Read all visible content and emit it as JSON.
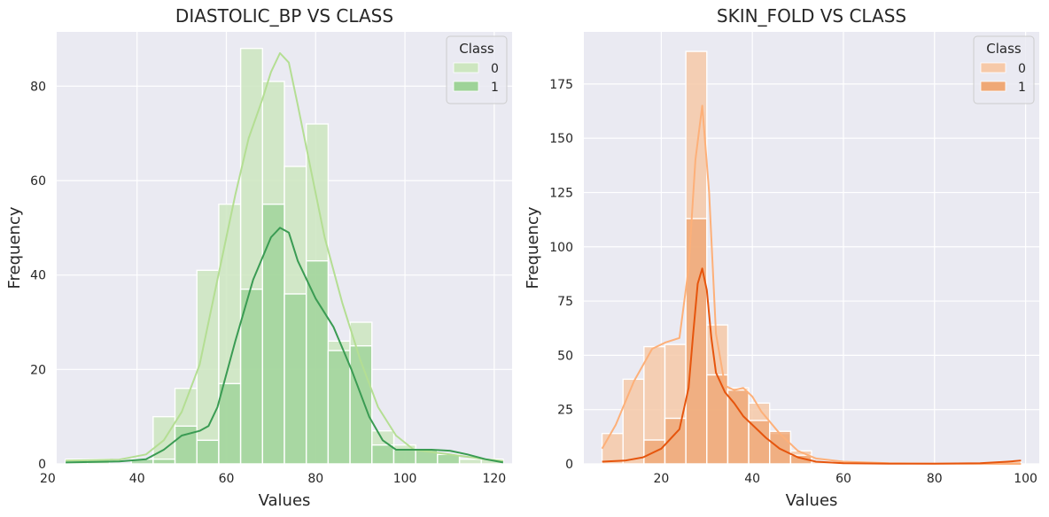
{
  "chart_data": [
    {
      "type": "histogram",
      "title": "DIASTOLIC_BP VS CLASS",
      "xlabel": "Values",
      "ylabel": "Frequency",
      "xlim": [
        22,
        124
      ],
      "ylim": [
        0,
        91.5
      ],
      "xticks": [
        20,
        40,
        60,
        80,
        100,
        120
      ],
      "yticks": [
        0,
        20,
        40,
        60,
        80
      ],
      "grid": true,
      "legend_title": "Class",
      "legend_position": "top-right",
      "bins": {
        "edges": [
          24.0,
          28.9,
          33.8,
          38.7,
          43.6,
          48.5,
          53.4,
          58.3,
          63.2,
          68.1,
          73.0,
          77.9,
          82.8,
          87.7,
          92.6,
          97.5,
          102.4,
          107.3,
          112.2,
          117.1,
          122.0
        ]
      },
      "series": [
        {
          "name": "0",
          "color": "#b4de93",
          "fill": "#cde6c0",
          "counts": [
            1,
            1,
            0,
            0,
            10,
            16,
            41,
            55,
            88,
            81,
            63,
            72,
            26,
            30,
            7,
            4,
            3,
            2,
            1,
            1
          ],
          "kde_x": [
            24,
            30,
            36,
            42,
            46,
            50,
            54,
            58,
            62,
            65,
            68,
            70,
            72,
            74,
            76,
            79,
            82,
            86,
            90,
            94,
            98,
            102,
            106,
            110,
            114,
            118,
            122
          ],
          "kde_y": [
            0.7,
            0.8,
            0.9,
            2,
            5,
            11,
            21,
            39,
            57,
            69,
            77,
            83,
            87,
            85,
            76,
            62,
            48,
            34,
            22,
            12,
            6,
            3,
            2.5,
            2,
            1.5,
            1,
            0.6
          ]
        },
        {
          "name": "1",
          "color": "#3a9b53",
          "fill": "#9ed398",
          "counts": [
            0,
            0,
            0,
            1,
            1,
            8,
            5,
            17,
            37,
            55,
            36,
            43,
            24,
            25,
            4,
            3,
            3,
            2,
            0,
            0
          ],
          "kde_x": [
            24,
            36,
            42,
            46,
            50,
            54,
            56,
            58,
            62,
            66,
            70,
            72,
            74,
            76,
            80,
            84,
            88,
            92,
            95,
            98,
            102,
            106,
            110,
            114,
            118,
            122
          ],
          "kde_y": [
            0.3,
            0.5,
            1,
            3,
            6,
            7,
            8,
            12,
            26,
            39,
            48,
            50,
            49,
            43,
            35,
            29,
            20,
            10,
            5,
            3,
            3,
            3,
            2.8,
            2,
            1,
            0.3
          ]
        }
      ]
    },
    {
      "type": "histogram",
      "title": "SKIN_FOLD VS CLASS",
      "xlabel": "Values",
      "ylabel": "Frequency",
      "xlim": [
        3,
        103
      ],
      "ylim": [
        0,
        199
      ],
      "xticks": [
        20,
        40,
        60,
        80,
        100
      ],
      "yticks": [
        0,
        25,
        50,
        75,
        100,
        125,
        150,
        175
      ],
      "grid": true,
      "legend_title": "Class",
      "legend_position": "top-right",
      "bins": {
        "edges": [
          7.0,
          11.6,
          16.2,
          20.8,
          25.4,
          30.0,
          34.6,
          39.2,
          43.8,
          48.4,
          53.0,
          57.6,
          62.2,
          66.8,
          71.4,
          76.0,
          80.6,
          85.2,
          89.8,
          94.4,
          99.0
        ]
      },
      "series": [
        {
          "name": "0",
          "color": "#fdb079",
          "fill": "#f6c9a8",
          "counts": [
            14,
            39,
            54,
            55,
            190,
            64,
            35,
            28,
            14,
            6,
            1,
            0,
            0,
            0,
            0,
            0,
            0,
            0,
            0,
            0
          ],
          "kde_x": [
            7,
            10,
            14,
            18,
            21,
            24,
            26,
            27.5,
            29,
            30.5,
            32,
            34,
            36,
            38,
            40,
            42,
            46,
            50,
            54,
            60,
            70,
            80,
            90,
            99
          ],
          "kde_y": [
            7,
            18,
            38,
            53,
            56,
            58,
            90,
            140,
            165,
            125,
            60,
            36,
            34,
            35,
            31,
            24,
            14,
            6,
            2.5,
            1,
            0.3,
            0.1,
            0.05,
            0
          ],
          "extra_labels": []
        },
        {
          "name": "1",
          "color": "#e6550d",
          "fill": "#efa876",
          "counts": [
            0,
            0,
            11,
            21,
            113,
            41,
            34,
            20,
            15,
            4,
            0,
            0,
            0,
            0,
            0,
            0,
            0,
            0,
            0,
            1
          ],
          "kde_x": [
            7,
            12,
            16,
            20,
            24,
            26,
            27,
            28,
            29,
            30,
            31,
            32,
            34,
            36,
            38,
            40,
            43,
            46,
            50,
            54,
            60,
            70,
            80,
            90,
            96,
            99
          ],
          "kde_y": [
            1,
            1.5,
            3,
            7,
            16,
            35,
            60,
            83,
            90,
            80,
            58,
            42,
            33,
            28,
            22,
            18,
            12,
            7,
            3,
            1,
            0.3,
            0.1,
            0.1,
            0.3,
            1,
            1.5
          ]
        }
      ]
    }
  ]
}
